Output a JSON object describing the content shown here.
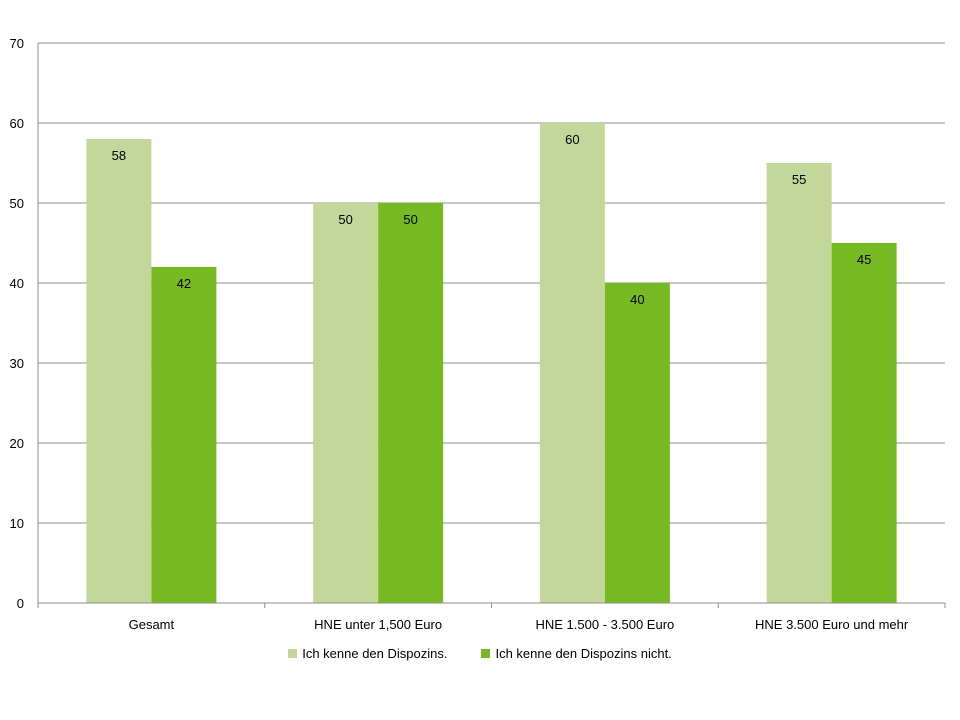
{
  "chart_data": {
    "type": "bar",
    "title": "",
    "xlabel": "",
    "ylabel": "",
    "ylim": [
      0,
      70
    ],
    "y_ticks": [
      0,
      10,
      20,
      30,
      40,
      50,
      60,
      70
    ],
    "grid": true,
    "legend_position": "bottom",
    "categories": [
      "Gesamt",
      "HNE unter 1,500 Euro",
      "HNE 1.500 - 3.500 Euro",
      "HNE 3.500 Euro und mehr"
    ],
    "series": [
      {
        "name": "Ich kenne den Dispozins.",
        "color": "#c4d79b",
        "values": [
          58,
          50,
          60,
          55
        ]
      },
      {
        "name": "Ich kenne den Dispozins nicht.",
        "color": "#77b922",
        "values": [
          42,
          50,
          40,
          45
        ]
      }
    ]
  }
}
